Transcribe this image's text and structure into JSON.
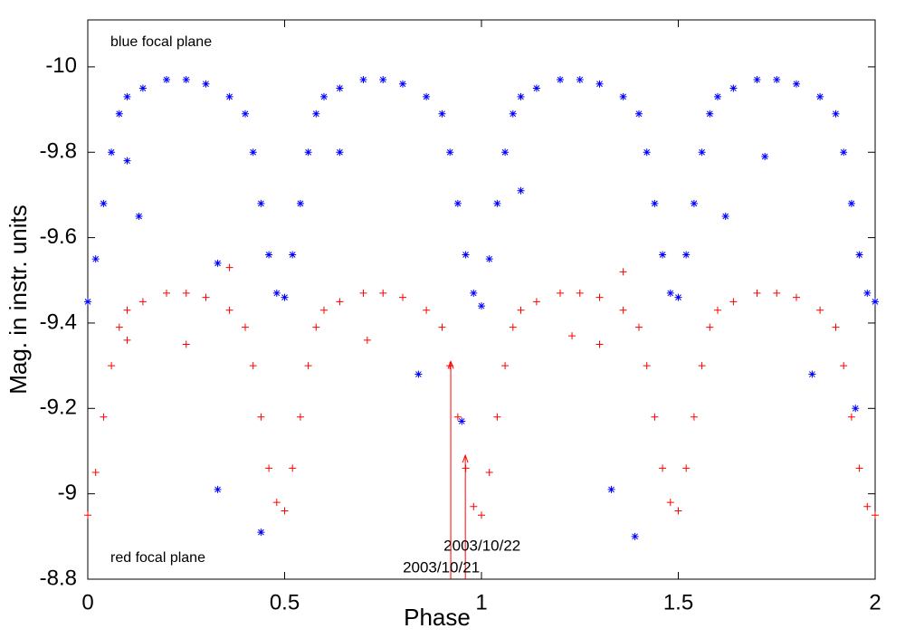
{
  "chart_data": {
    "type": "scatter",
    "xlabel": "Phase",
    "ylabel": "Mag. in instr. units",
    "xlim": [
      0,
      2
    ],
    "ylim": [
      -8.8,
      -10.11
    ],
    "xticks": [
      0,
      0.5,
      1,
      1.5,
      2
    ],
    "yticks": [
      -10,
      -9.8,
      -9.6,
      -9.4,
      -9.2,
      -9,
      -8.8
    ],
    "series": [
      {
        "name": "blue focal plane",
        "color": "#0000ff",
        "marker": "star",
        "x": [
          0,
          0.02,
          0.04,
          0.06,
          0.08,
          0.1,
          0.14,
          0.2,
          0.25,
          0.3,
          0.36,
          0.4,
          0.42,
          0.44,
          0.46,
          0.48,
          0.5,
          0.52,
          0.54,
          0.56,
          0.58,
          0.6,
          0.64,
          0.7,
          0.75,
          0.8,
          0.86,
          0.9,
          0.92,
          0.94,
          0.96,
          0.98,
          1,
          1.02,
          1.04,
          1.06,
          1.08,
          1.1,
          1.14,
          1.2,
          1.25,
          1.3,
          1.36,
          1.4,
          1.42,
          1.44,
          1.46,
          1.48,
          1.5,
          1.52,
          1.54,
          1.56,
          1.58,
          1.6,
          1.64,
          1.7,
          1.75,
          1.8,
          1.86,
          1.9,
          1.92,
          1.94,
          1.96,
          1.98,
          2,
          0.13,
          0.1,
          0.33,
          0.33,
          0.44,
          0.84,
          0.95,
          1.33,
          1.39,
          1.84,
          1.62,
          1.72,
          0.64,
          1.1,
          1.95
        ],
        "values": [
          -9.45,
          -9.55,
          -9.68,
          -9.8,
          -9.89,
          -9.93,
          -9.95,
          -9.97,
          -9.97,
          -9.96,
          -9.93,
          -9.89,
          -9.8,
          -9.68,
          -9.56,
          -9.47,
          -9.46,
          -9.56,
          -9.68,
          -9.8,
          -9.89,
          -9.93,
          -9.95,
          -9.97,
          -9.97,
          -9.96,
          -9.93,
          -9.89,
          -9.8,
          -9.68,
          -9.56,
          -9.47,
          -9.44,
          -9.55,
          -9.68,
          -9.8,
          -9.89,
          -9.93,
          -9.95,
          -9.97,
          -9.97,
          -9.96,
          -9.93,
          -9.89,
          -9.8,
          -9.68,
          -9.56,
          -9.47,
          -9.46,
          -9.56,
          -9.68,
          -9.8,
          -9.89,
          -9.93,
          -9.95,
          -9.97,
          -9.97,
          -9.96,
          -9.93,
          -9.89,
          -9.8,
          -9.68,
          -9.56,
          -9.47,
          -9.45,
          -9.65,
          -9.78,
          -9.54,
          -9.01,
          -8.91,
          -9.28,
          -9.17,
          -9.01,
          -8.9,
          -9.28,
          -9.65,
          -9.79,
          -9.8,
          -9.71,
          -9.2
        ]
      },
      {
        "name": "red focal plane",
        "color": "#ff0000",
        "marker": "plus",
        "x": [
          0,
          0.02,
          0.04,
          0.06,
          0.08,
          0.1,
          0.14,
          0.2,
          0.25,
          0.3,
          0.36,
          0.4,
          0.42,
          0.44,
          0.46,
          0.48,
          0.5,
          0.52,
          0.54,
          0.56,
          0.58,
          0.6,
          0.64,
          0.7,
          0.75,
          0.8,
          0.86,
          0.9,
          0.92,
          0.94,
          0.96,
          0.98,
          1,
          1.02,
          1.04,
          1.06,
          1.08,
          1.1,
          1.14,
          1.2,
          1.25,
          1.3,
          1.36,
          1.4,
          1.42,
          1.44,
          1.46,
          1.48,
          1.5,
          1.52,
          1.54,
          1.56,
          1.58,
          1.6,
          1.64,
          1.7,
          1.75,
          1.8,
          1.86,
          1.9,
          1.92,
          1.94,
          1.96,
          1.98,
          2,
          0.1,
          0.25,
          0.36,
          1.3,
          1.36,
          0.71,
          1.23
        ],
        "values": [
          -8.95,
          -9.05,
          -9.18,
          -9.3,
          -9.39,
          -9.43,
          -9.45,
          -9.47,
          -9.47,
          -9.46,
          -9.43,
          -9.39,
          -9.3,
          -9.18,
          -9.06,
          -8.98,
          -8.96,
          -9.06,
          -9.18,
          -9.3,
          -9.39,
          -9.43,
          -9.45,
          -9.47,
          -9.47,
          -9.46,
          -9.43,
          -9.39,
          -9.3,
          -9.18,
          -9.06,
          -8.97,
          -8.95,
          -9.05,
          -9.18,
          -9.3,
          -9.39,
          -9.43,
          -9.45,
          -9.47,
          -9.47,
          -9.46,
          -9.43,
          -9.39,
          -9.3,
          -9.18,
          -9.06,
          -8.98,
          -8.96,
          -9.06,
          -9.18,
          -9.3,
          -9.39,
          -9.43,
          -9.45,
          -9.47,
          -9.47,
          -9.46,
          -9.43,
          -9.39,
          -9.3,
          -9.18,
          -9.06,
          -8.97,
          -8.95,
          -9.36,
          -9.35,
          -9.53,
          -9.35,
          -9.52,
          -9.36,
          -9.37
        ]
      }
    ],
    "annotations": [
      {
        "text": "2003/10/22",
        "x": 0.959,
        "y": -9.09
      },
      {
        "text": "2003/10/21",
        "x": 0.922,
        "y": -9.31
      }
    ]
  }
}
